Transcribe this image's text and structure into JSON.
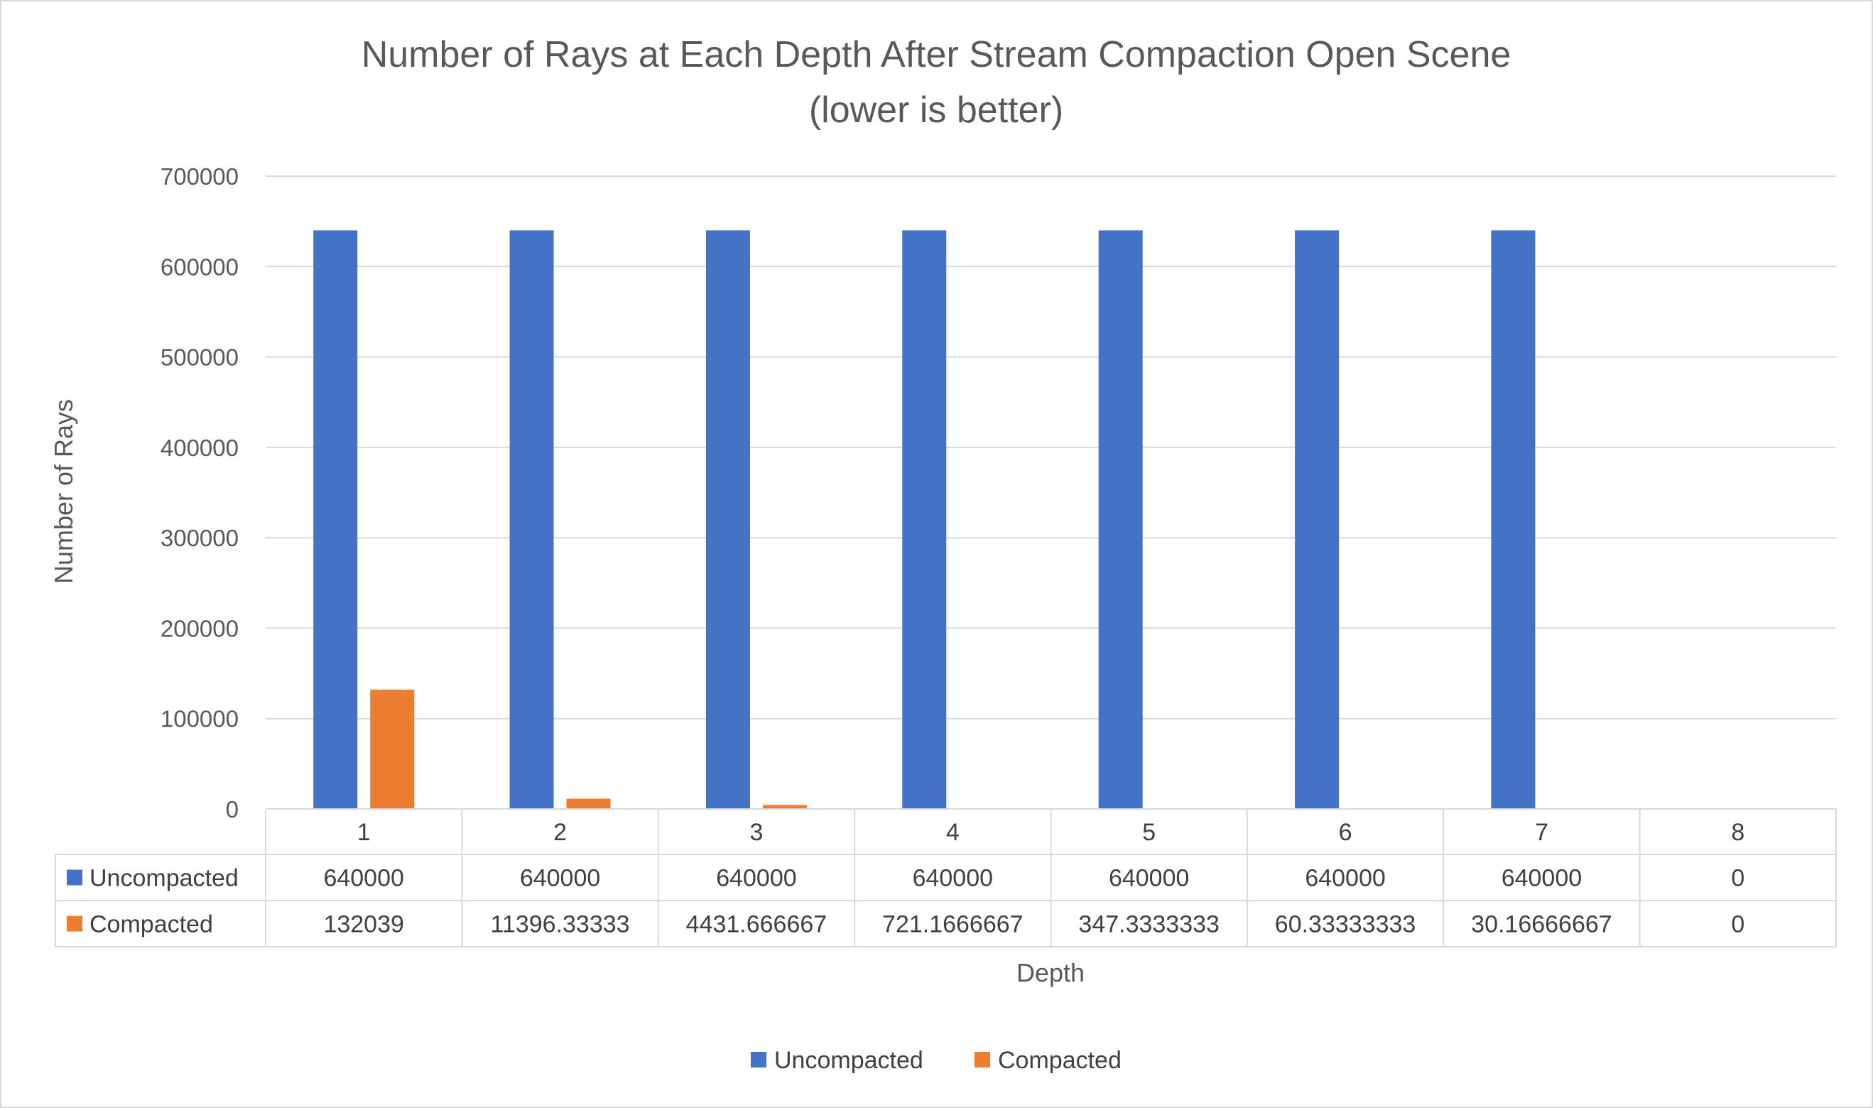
{
  "chart_data": {
    "type": "bar",
    "title_line1": "Number of Rays at Each Depth After Stream Compaction Open Scene",
    "title_line2": "(lower is better)",
    "xlabel": "Depth",
    "ylabel": "Number of Rays",
    "ylim": [
      0,
      700000
    ],
    "yticks": [
      "0",
      "100000",
      "200000",
      "300000",
      "400000",
      "500000",
      "600000",
      "700000"
    ],
    "grid": true,
    "legend_position": "bottom",
    "categories": [
      "1",
      "2",
      "3",
      "4",
      "5",
      "6",
      "7",
      "8"
    ],
    "series": [
      {
        "name": "Uncompacted",
        "color": "#4472C4",
        "values": [
          640000,
          640000,
          640000,
          640000,
          640000,
          640000,
          640000,
          0
        ],
        "labels": [
          "640000",
          "640000",
          "640000",
          "640000",
          "640000",
          "640000",
          "640000",
          "0"
        ]
      },
      {
        "name": "Compacted",
        "color": "#ED7D31",
        "values": [
          132039,
          11396.33333,
          4431.666667,
          721.1666667,
          347.3333333,
          60.33333333,
          30.16666667,
          0
        ],
        "labels": [
          "132039",
          "11396.33333",
          "4431.666667",
          "721.1666667",
          "347.3333333",
          "60.33333333",
          "30.16666667",
          "0"
        ]
      }
    ]
  }
}
